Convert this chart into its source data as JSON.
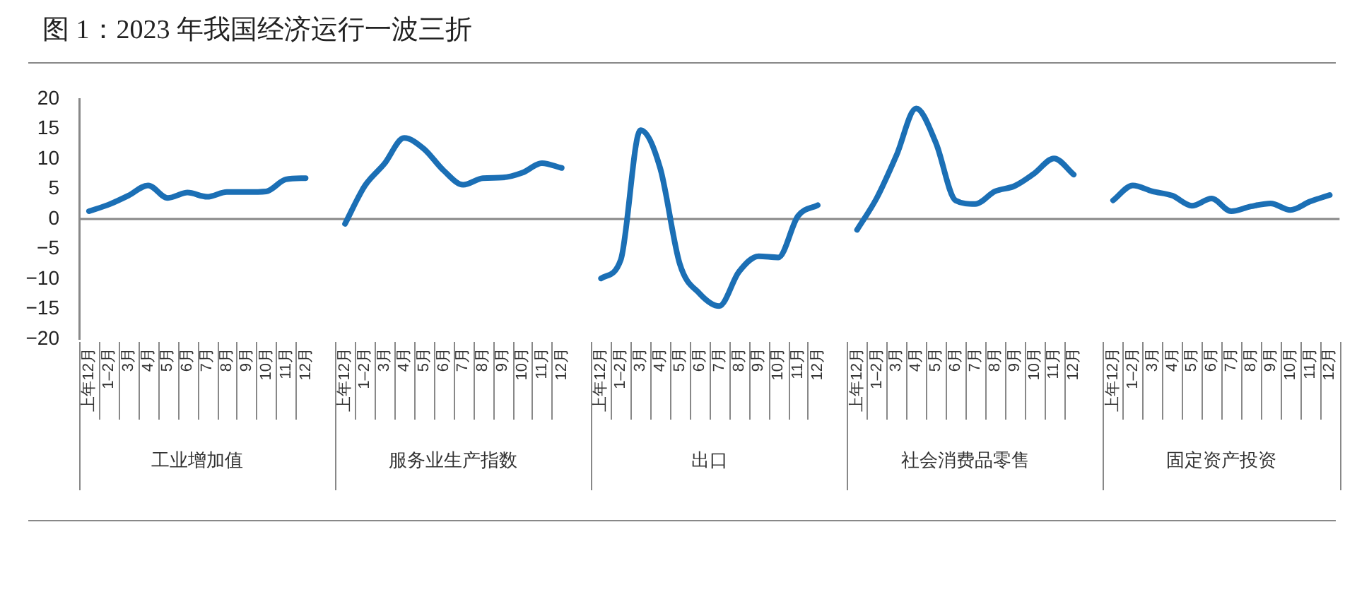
{
  "chart_data": {
    "type": "line",
    "title": "图 1：2023 年我国经济运行一波三折",
    "categories": [
      "上年12月",
      "1–2月",
      "3月",
      "4月",
      "5月",
      "6月",
      "7月",
      "8月",
      "9月",
      "10月",
      "11月",
      "12月",
      null,
      "上年12月",
      "1–2月",
      "3月",
      "4月",
      "5月",
      "6月",
      "7月",
      "8月",
      "9月",
      "10月",
      "11月",
      "12月",
      null,
      "上年12月",
      "1–2月",
      "3月",
      "4月",
      "5月",
      "6月",
      "7月",
      "8月",
      "9月",
      "10月",
      "11月",
      "12月",
      null,
      "上年12月",
      "1–2月",
      "3月",
      "4月",
      "5月",
      "6月",
      "7月",
      "8月",
      "9月",
      "10月",
      "11月",
      "12月",
      null,
      "上年12月",
      "1–2月",
      "3月",
      "4月",
      "5月",
      "6月",
      "7月",
      "8月",
      "9月",
      "10月",
      "11月",
      "12月"
    ],
    "series": [
      {
        "color": "#1b6fb5",
        "values": [
          1.3,
          2.4,
          3.9,
          5.6,
          3.5,
          4.4,
          3.7,
          4.5,
          4.5,
          4.6,
          6.6,
          6.8,
          null,
          -0.8,
          5.5,
          9.2,
          13.5,
          11.7,
          8.1,
          5.7,
          6.8,
          6.9,
          7.7,
          9.3,
          8.5,
          null,
          -9.9,
          -6.8,
          14.8,
          8.5,
          -7.5,
          -12.4,
          -14.5,
          -8.8,
          -6.2,
          -6.4,
          0.5,
          2.3,
          null,
          -1.8,
          3.5,
          10.6,
          18.4,
          12.7,
          3.1,
          2.5,
          4.6,
          5.5,
          7.6,
          10.1,
          7.4,
          null,
          3.1,
          5.6,
          4.6,
          3.9,
          2.2,
          3.4,
          1.3,
          2.1,
          2.6,
          1.5,
          2.9,
          4.0
        ]
      }
    ],
    "annotations": [
      "工业增加值",
      "服务业生产指数",
      "出口",
      "社会消费品零售",
      "固定资产投资"
    ],
    "ref_lines": [
      {
        "axis": "y",
        "value": 0,
        "color": "#888888"
      }
    ],
    "ylim": [
      -20,
      20
    ],
    "yticks": [
      -20,
      -15,
      -10,
      -5,
      0,
      5,
      10,
      15,
      20
    ],
    "grid": false,
    "legend": false,
    "marker": "none",
    "line_style": "solid"
  }
}
